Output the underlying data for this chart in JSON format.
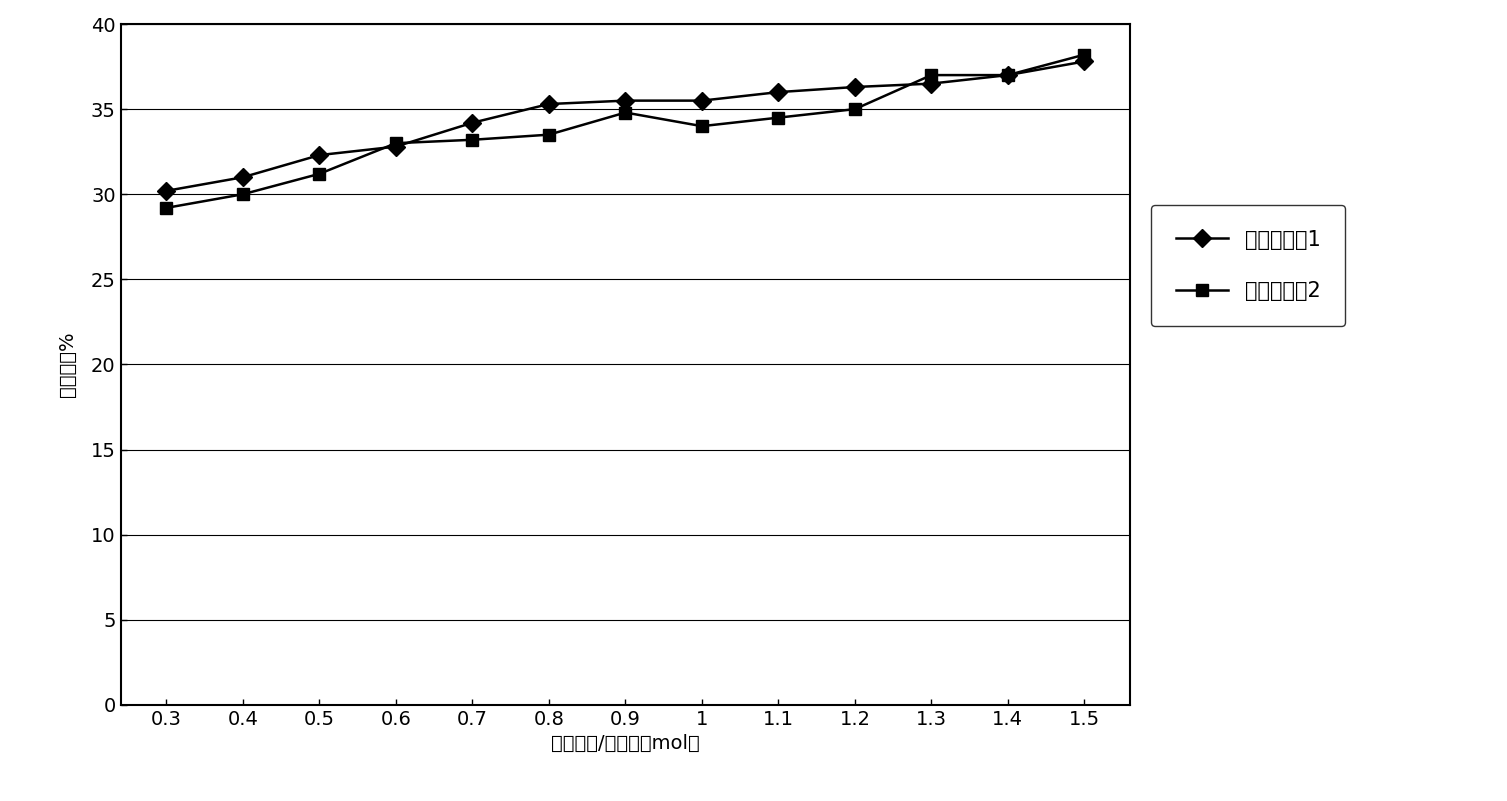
{
  "x": [
    0.3,
    0.4,
    0.5,
    0.6,
    0.7,
    0.8,
    0.9,
    1.0,
    1.1,
    1.2,
    1.3,
    1.4,
    1.5
  ],
  "series1_y": [
    30.2,
    31.0,
    32.3,
    32.8,
    34.2,
    35.3,
    35.5,
    35.5,
    36.0,
    36.3,
    36.5,
    37.0,
    37.8
  ],
  "series2_y": [
    29.2,
    30.0,
    31.2,
    33.0,
    33.2,
    33.5,
    34.8,
    34.0,
    34.5,
    35.0,
    37.0,
    37.0,
    38.2
  ],
  "series1_label": "调节剂体关1",
  "series2_label": "调节剂体关2",
  "xlabel": "助调节剂/有机锂（mol）",
  "ylabel": "乙烯含量%",
  "ylim": [
    0,
    40
  ],
  "yticks": [
    0,
    5,
    10,
    15,
    20,
    25,
    30,
    35,
    40
  ],
  "xtick_labels": [
    "0.3",
    "0.4",
    "0.5",
    "0.6",
    "0.7",
    "0.8",
    "0.9",
    "1",
    "1.1",
    "1.2",
    "1.3",
    "1.4",
    "1.5"
  ],
  "line1_color": "#000000",
  "line2_color": "#000000",
  "marker1": "D",
  "marker2": "s",
  "plot_bg_color": "#ffffff",
  "fig_bg_color": "#ffffff",
  "grid_color": "#000000"
}
